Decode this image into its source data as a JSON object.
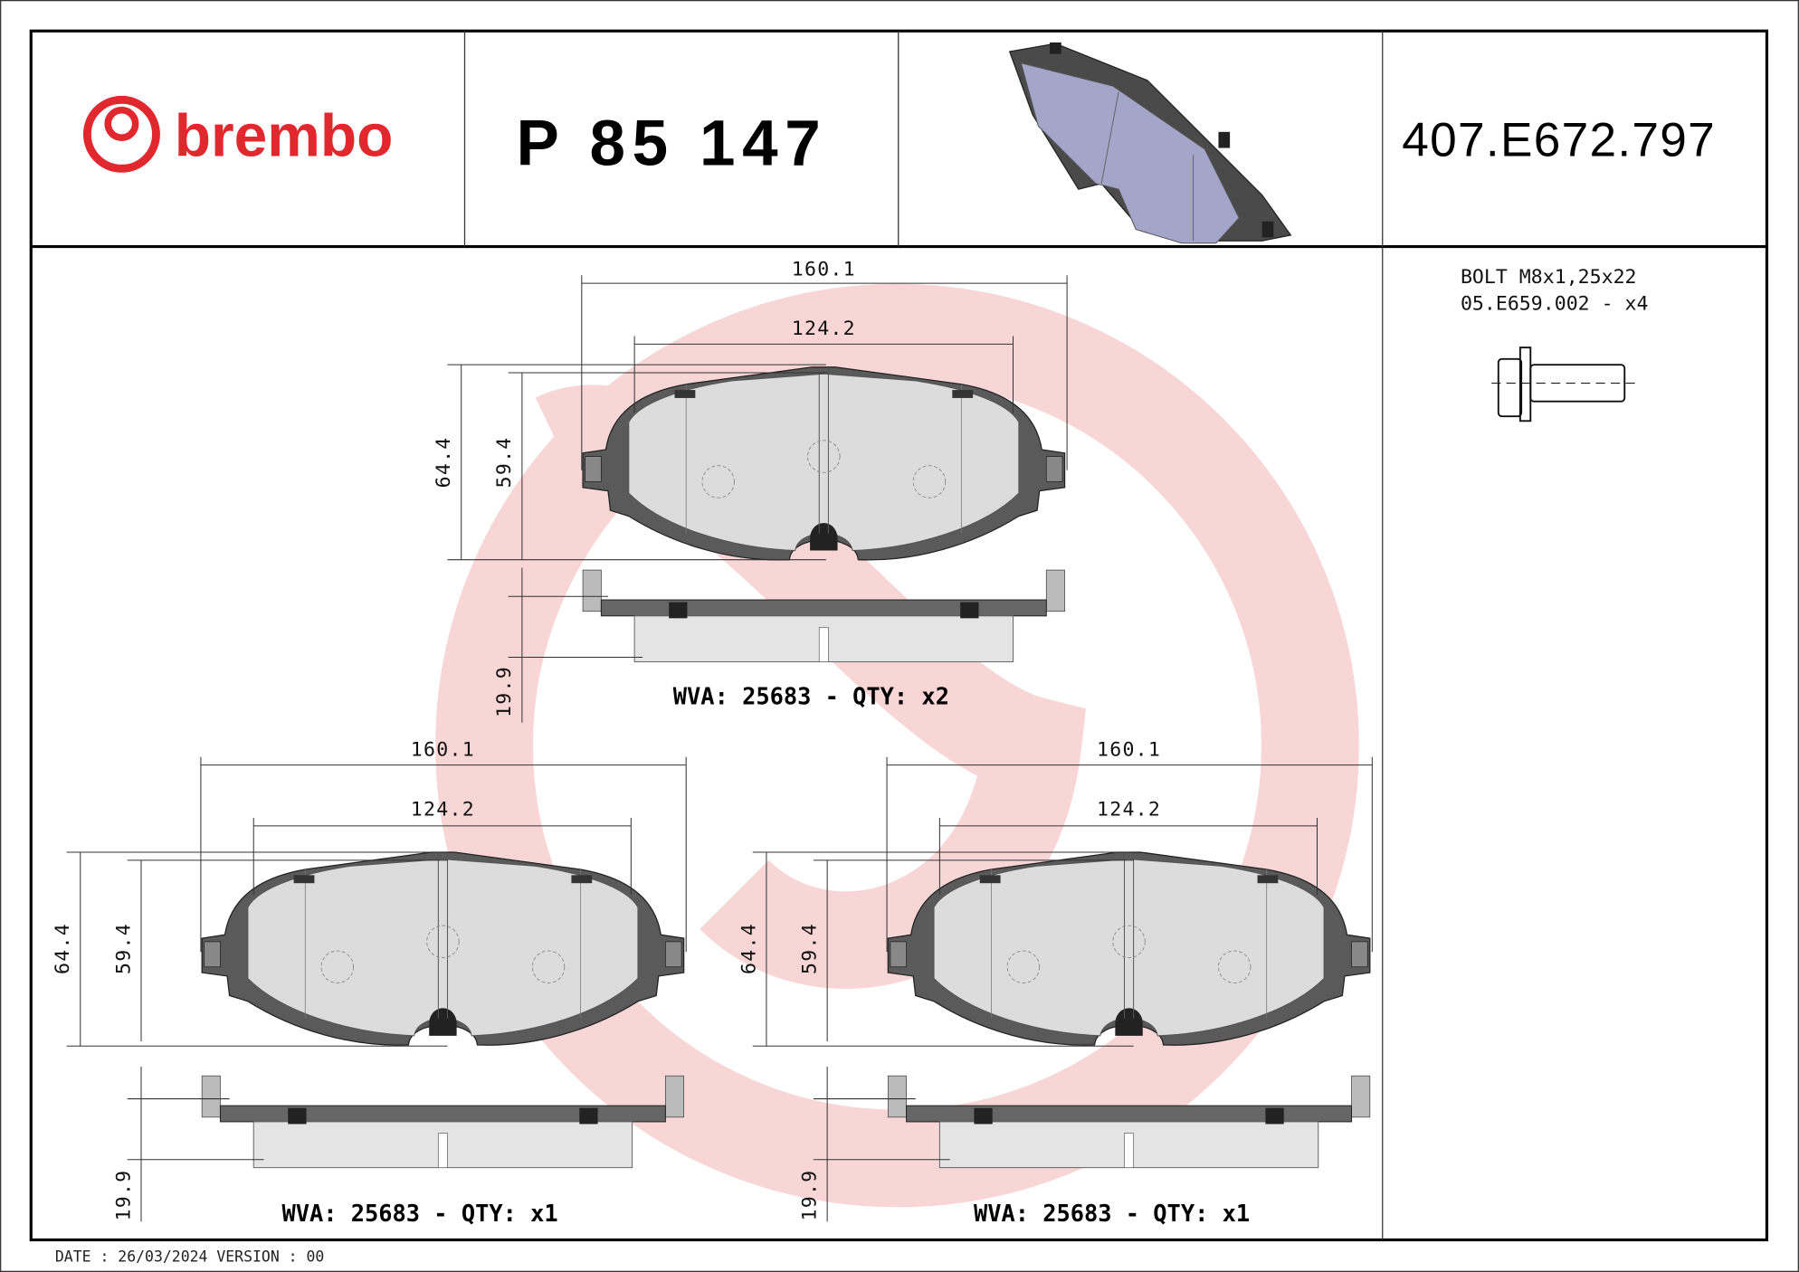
{
  "brand": {
    "name": "brembo",
    "color": "#e2282f"
  },
  "header": {
    "part_number": "P 85 147",
    "reference_code": "407.E672.797"
  },
  "hardware": {
    "line1": "BOLT M8x1,25x22",
    "line2": "05.E659.002 - x4",
    "icon": "bolt-icon"
  },
  "drawings": [
    {
      "width_outer": "160.1",
      "width_inner": "124.2",
      "height_outer": "64.4",
      "height_inner": "59.4",
      "thickness": "19.9",
      "caption": "WVA: 25683 - QTY: x2"
    },
    {
      "width_outer": "160.1",
      "width_inner": "124.2",
      "height_outer": "64.4",
      "height_inner": "59.4",
      "thickness": "19.9",
      "caption": "WVA: 25683 - QTY: x1"
    },
    {
      "width_outer": "160.1",
      "width_inner": "124.2",
      "height_outer": "64.4",
      "height_inner": "59.4",
      "thickness": "19.9",
      "caption": "WVA: 25683 - QTY: x1"
    }
  ],
  "footer": {
    "date_version": "DATE : 26/03/2024 VERSION : 00"
  },
  "colors": {
    "watermark": "#f5c8c8",
    "pad_3d": "#a3a5c9"
  }
}
